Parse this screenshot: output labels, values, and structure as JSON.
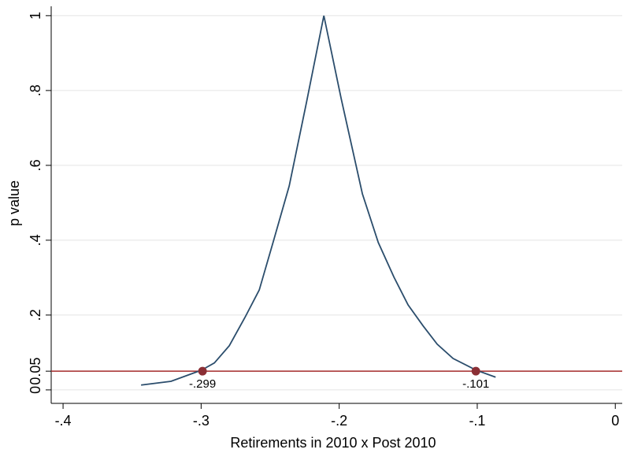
{
  "chart_data": {
    "type": "line",
    "x_label": "Retirements in 2010 x Post 2010",
    "y_label": "p value",
    "xlim": [
      -0.4086,
      0.005
    ],
    "ylim": [
      -0.036,
      1.025
    ],
    "xticks": [
      {
        "value": -0.4,
        "label": "-.4"
      },
      {
        "value": -0.3,
        "label": "-.3"
      },
      {
        "value": -0.2,
        "label": "-.2"
      },
      {
        "value": -0.1,
        "label": "-.1"
      },
      0
    ],
    "yticks": [
      0,
      0.05,
      {
        "value": 0.2,
        "label": ".2"
      },
      {
        "value": 0.4,
        "label": ".4"
      },
      {
        "value": 0.6,
        "label": ".6"
      },
      {
        "value": 0.8,
        "label": ".8"
      },
      1
    ],
    "grid": true,
    "series": [
      {
        "color": "#2b4d6c",
        "x": [
          -0.3435,
          -0.3218,
          -0.2996,
          -0.2904,
          -0.2796,
          -0.2682,
          -0.2579,
          -0.2476,
          -0.2362,
          -0.2237,
          -0.2111,
          -0.1986,
          -0.1832,
          -0.1717,
          -0.1603,
          -0.1501,
          -0.1392,
          -0.129,
          -0.1175,
          -0.101,
          -0.0867
        ],
        "values": [
          0.013,
          0.023,
          0.053,
          0.072,
          0.118,
          0.194,
          0.267,
          0.398,
          0.545,
          0.768,
          1,
          0.779,
          0.524,
          0.394,
          0.301,
          0.227,
          0.171,
          0.122,
          0.084,
          0.053,
          0.034
        ]
      }
    ],
    "hline": {
      "value": 0.05,
      "color": "#a52a2a"
    },
    "markers": {
      "color": "#8b2f35",
      "x": [
        -0.299,
        -0.101
      ],
      "values": [
        0.05,
        0.05
      ],
      "labels": [
        "-.299",
        "-.101"
      ]
    }
  }
}
